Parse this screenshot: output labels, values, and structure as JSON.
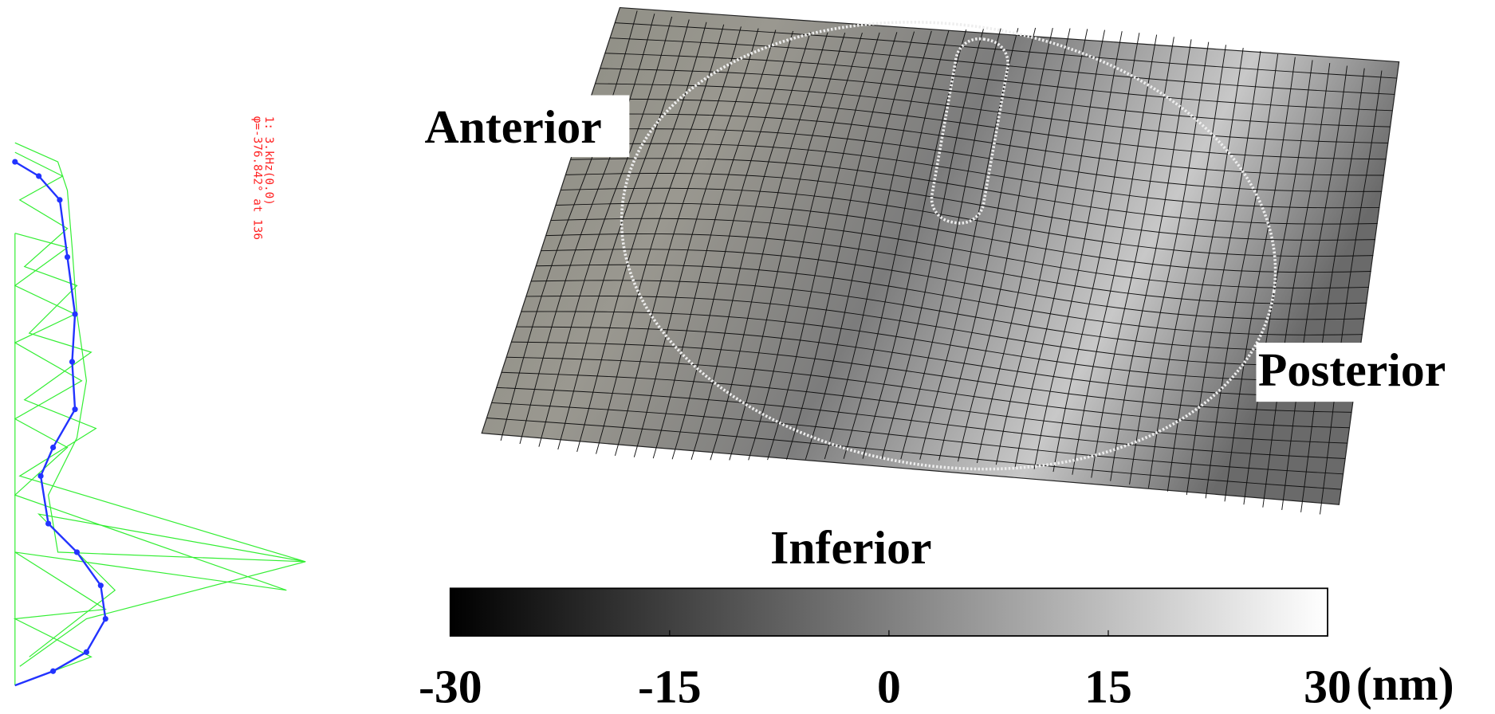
{
  "labels": {
    "anterior": "Anterior",
    "posterior": "Posterior",
    "inferior": "Inferior"
  },
  "annotation": [
    "1: 3.kHz(0.0)",
    "φ=-376.842° at 136"
  ],
  "colorbar": {
    "ticks": [
      -30,
      -15,
      0,
      15,
      30
    ],
    "unit": "(nm)"
  }
}
